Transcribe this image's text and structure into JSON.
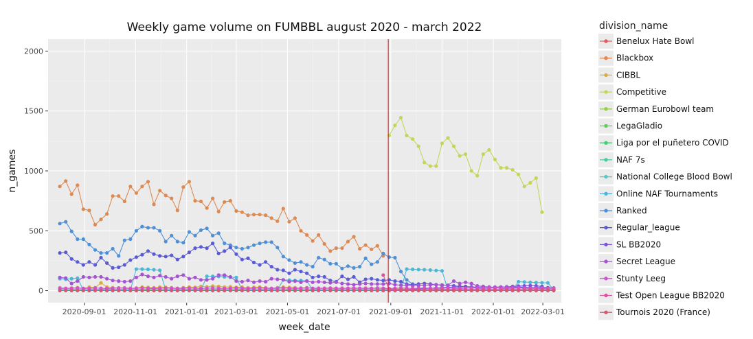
{
  "chart_data": {
    "type": "line",
    "title": "Weekly game volume on FUMBBL august 2020 - march 2022",
    "xlabel": "week_date",
    "ylabel": "n_games",
    "ylim": [
      -100,
      2100
    ],
    "yticks": [
      0,
      500,
      1000,
      1500,
      2000
    ],
    "x_ticks": [
      "2020-09-01",
      "2020-11-01",
      "2021-01-01",
      "2021-03-01",
      "2021-05-01",
      "2021-07-01",
      "2021-09-01",
      "2021-11-01",
      "2022-01-01",
      "2022-03-01"
    ],
    "x_range": [
      "2020-07-20",
      "2022-03-23"
    ],
    "x_start": "2020-08-03",
    "vline": {
      "x": "2021-08-29",
      "color": "#e41a1c"
    },
    "legend": {
      "title": "division_name",
      "position": "right"
    },
    "grid": true,
    "background": "#ebebeb",
    "series": [
      {
        "name": "Benelux Hate Bowl",
        "color": "#e5595e",
        "values": [
          2,
          2,
          3,
          2,
          2,
          2,
          2,
          2,
          3,
          2,
          2,
          2,
          2,
          2,
          2,
          2,
          2,
          2,
          2,
          2,
          2,
          2,
          2,
          2,
          2,
          2,
          2,
          2,
          2,
          2,
          2,
          2,
          2,
          2,
          2,
          2,
          2,
          2,
          2,
          2,
          2,
          2,
          2,
          2,
          2,
          2,
          2,
          2,
          2,
          2,
          2,
          2,
          2,
          2,
          2,
          2,
          2,
          2,
          2,
          2,
          2,
          2,
          2,
          2,
          2,
          2,
          2,
          2,
          2,
          2,
          2,
          2,
          2,
          2,
          2,
          2,
          2,
          2,
          2,
          2,
          2,
          2,
          2,
          2,
          2
        ]
      },
      {
        "name": "Blackbox",
        "color": "#dc8a52",
        "values": [
          870,
          915,
          805,
          880,
          680,
          670,
          550,
          595,
          640,
          790,
          790,
          745,
          870,
          815,
          870,
          910,
          720,
          835,
          795,
          770,
          670,
          865,
          910,
          750,
          745,
          690,
          770,
          660,
          740,
          750,
          665,
          655,
          630,
          635,
          635,
          630,
          605,
          580,
          685,
          575,
          605,
          500,
          465,
          415,
          465,
          390,
          330,
          355,
          355,
          410,
          450,
          350,
          380,
          345,
          375,
          290
        ]
      },
      {
        "name": "CIBBL",
        "color": "#d9ad3c",
        "values": [
          25,
          20,
          22,
          25,
          20,
          30,
          25,
          65,
          30,
          25,
          22,
          25,
          20,
          22,
          30,
          28,
          25,
          30,
          28,
          25,
          20,
          25,
          30,
          28,
          35,
          32,
          38,
          35,
          30,
          32,
          28,
          30,
          25,
          28,
          30,
          25,
          20,
          25,
          30,
          28,
          25,
          22,
          25,
          20,
          22,
          20,
          18,
          20,
          22,
          20,
          18,
          20,
          22,
          20,
          18,
          20,
          15,
          12,
          15,
          12,
          10,
          12,
          10,
          12,
          10,
          12,
          10,
          12,
          10,
          8,
          10,
          8,
          10,
          8,
          10,
          8,
          10,
          8,
          10,
          8,
          10,
          8,
          10,
          8,
          10
        ]
      },
      {
        "name": "Competitive",
        "color": "#c6d45c",
        "offset": 56,
        "values": [
          1295,
          1380,
          1445,
          1295,
          1265,
          1205,
          1070,
          1040,
          1040,
          1230,
          1275,
          1205,
          1125,
          1140,
          1000,
          960,
          1140,
          1175,
          1095,
          1025,
          1025,
          1010,
          970,
          870,
          900,
          940,
          655
        ]
      },
      {
        "name": "German Eurobowl team",
        "color": "#9acd4f",
        "values": [
          5,
          5,
          5,
          5,
          5,
          5,
          5,
          5,
          5,
          5,
          5,
          5,
          5,
          5,
          5,
          5,
          5,
          5,
          5,
          5,
          5,
          5,
          5,
          5,
          5,
          5,
          5,
          5,
          5,
          5,
          5,
          5,
          5,
          5,
          5,
          5,
          5,
          5,
          5,
          5,
          5,
          5,
          5,
          5,
          5,
          5,
          5,
          5,
          5,
          5,
          5,
          5,
          5,
          5,
          5,
          5,
          5,
          5,
          5,
          5,
          5,
          5,
          5,
          5,
          5,
          5,
          5,
          5,
          5,
          5,
          5,
          5,
          5,
          5,
          5,
          5,
          30,
          5,
          5,
          5,
          5,
          5,
          5,
          5,
          5
        ]
      },
      {
        "name": "LegaGladio",
        "color": "#5fcd5a",
        "values": [
          3,
          3,
          3,
          3,
          3,
          3,
          3,
          3,
          3,
          3,
          3,
          3,
          3,
          3,
          3,
          3,
          3,
          3,
          3,
          3,
          3,
          3,
          3,
          3,
          3,
          3,
          3,
          3,
          3,
          3,
          3,
          3,
          3,
          3,
          3,
          3,
          3,
          3,
          3,
          3,
          3,
          3,
          3,
          3,
          3,
          3,
          3,
          3,
          3,
          3,
          3,
          3,
          3,
          3,
          3,
          3,
          3,
          3,
          3,
          3,
          3,
          3,
          3,
          3,
          3,
          3,
          3,
          3,
          3,
          3,
          3,
          3,
          3,
          3,
          3,
          3,
          3,
          3,
          3,
          3,
          3,
          3,
          3,
          3,
          3
        ]
      },
      {
        "name": "Liga por el puñetero COVID",
        "color": "#42cc7a",
        "values": [
          4,
          4,
          4,
          4,
          4,
          4,
          4,
          4,
          4,
          4,
          4,
          4,
          4,
          4,
          4,
          4,
          4,
          4,
          4,
          4,
          4,
          4,
          4,
          4,
          4,
          4,
          4,
          4,
          4,
          4,
          4,
          4,
          4,
          4,
          4,
          4,
          4,
          4,
          4,
          4,
          4,
          4,
          4,
          4,
          4,
          4,
          4,
          4,
          4,
          4,
          4,
          4,
          4,
          4,
          4,
          4
        ]
      },
      {
        "name": "NAF 7s",
        "color": "#44cca0",
        "values": [
          2,
          2,
          2,
          2,
          2,
          2,
          2,
          2,
          2,
          2,
          2,
          2,
          2,
          2,
          2,
          2,
          2,
          2,
          2,
          2,
          2,
          2,
          2,
          2,
          2,
          2,
          2,
          2,
          2,
          2,
          2,
          2,
          2,
          2,
          2,
          2,
          2,
          2,
          2,
          2,
          2,
          2,
          2,
          2,
          2,
          2,
          2,
          2,
          2,
          2,
          2,
          2,
          2,
          2,
          2,
          2,
          2,
          2,
          2,
          2,
          2,
          2,
          2,
          2,
          2,
          2,
          2,
          2,
          2,
          2,
          2,
          2,
          2,
          2,
          2,
          2,
          2,
          2,
          2,
          2,
          2,
          2,
          2,
          2,
          2
        ]
      },
      {
        "name": "National College Blood Bowl",
        "color": "#4ccbc7",
        "values": [
          10,
          8,
          10,
          12,
          8,
          10,
          12,
          10,
          15,
          10,
          12,
          10,
          8,
          12,
          10,
          12,
          15,
          12,
          10,
          8,
          10,
          12,
          10,
          12,
          10,
          8,
          10,
          12,
          10,
          8,
          10,
          12,
          10,
          8,
          10,
          12,
          10,
          8,
          10,
          12,
          10,
          8,
          10,
          12,
          10,
          8,
          10,
          12,
          10,
          8,
          10,
          12,
          10,
          8,
          10,
          12,
          10,
          8,
          10,
          8,
          10,
          8,
          10,
          8,
          10,
          8,
          10,
          8,
          10,
          8,
          10,
          8,
          10,
          8,
          10,
          8,
          10,
          8,
          10,
          8,
          10,
          8,
          10,
          8,
          10
        ]
      },
      {
        "name": "Online NAF Tournaments",
        "color": "#4cb6d4",
        "values": [
          100,
          95,
          100,
          105,
          5,
          5,
          5,
          5,
          5,
          5,
          5,
          5,
          5,
          180,
          180,
          178,
          175,
          170,
          5,
          5,
          5,
          5,
          5,
          5,
          5,
          120,
          120,
          118,
          115,
          112,
          110,
          5,
          5,
          5,
          5,
          5,
          5,
          5,
          90,
          88,
          85,
          85,
          82,
          5,
          5,
          5,
          5,
          5,
          5,
          5,
          5,
          5,
          5,
          5,
          5,
          5,
          5,
          5,
          5,
          180,
          178,
          176,
          175,
          172,
          168,
          165,
          5,
          5,
          5,
          5,
          5,
          5,
          5,
          5,
          5,
          5,
          5,
          5,
          75,
          72,
          70,
          68,
          66,
          65,
          5
        ]
      },
      {
        "name": "Ranked",
        "color": "#4e8fd6",
        "values": [
          560,
          575,
          495,
          430,
          430,
          385,
          340,
          315,
          315,
          350,
          290,
          420,
          430,
          500,
          535,
          525,
          525,
          500,
          410,
          460,
          410,
          400,
          490,
          460,
          505,
          520,
          460,
          480,
          395,
          380,
          360,
          350,
          360,
          380,
          395,
          405,
          405,
          360,
          285,
          255,
          230,
          240,
          215,
          200,
          275,
          260,
          225,
          225,
          185,
          205,
          190,
          200,
          270,
          220,
          240,
          310,
          280,
          275,
          160,
          90,
          55,
          50
        ]
      },
      {
        "name": "Regular_league",
        "color": "#5a5ad4",
        "values": [
          315,
          320,
          265,
          240,
          215,
          240,
          215,
          275,
          230,
          190,
          195,
          215,
          255,
          280,
          300,
          330,
          305,
          290,
          285,
          295,
          260,
          285,
          320,
          355,
          365,
          355,
          395,
          310,
          330,
          360,
          305,
          260,
          270,
          235,
          215,
          240,
          200,
          175,
          170,
          145,
          175,
          160,
          145,
          110,
          120,
          115,
          85,
          75,
          120,
          95,
          115,
          70,
          95,
          100,
          90,
          85,
          90,
          80,
          75,
          55,
          50,
          55,
          60,
          55,
          50,
          45,
          45,
          40,
          35,
          35,
          30,
          30,
          28,
          30,
          28,
          30,
          28,
          28,
          30,
          28,
          25,
          25,
          28,
          25,
          22
        ]
      },
      {
        "name": "SL BB2020",
        "color": "#7a52d4",
        "offset": 56,
        "values": [
          5,
          5,
          8,
          10,
          12,
          15,
          18,
          20,
          22,
          25,
          28,
          30,
          30,
          32,
          30,
          28,
          30,
          28,
          30,
          30,
          32,
          35,
          38,
          40,
          42,
          40,
          35
        ]
      },
      {
        "name": "Secret League",
        "color": "#a652d2",
        "values": [
          110,
          105,
          60,
          80,
          115,
          110,
          115,
          115,
          100,
          85,
          80,
          75,
          80,
          110,
          135,
          120,
          110,
          125,
          115,
          100,
          120,
          130,
          100,
          110,
          90,
          90,
          100,
          130,
          130,
          115,
          80,
          75,
          85,
          70,
          80,
          75,
          100,
          95,
          90,
          75,
          80,
          70,
          80,
          70,
          75,
          70,
          65,
          70,
          60,
          55,
          50,
          55,
          60,
          55,
          55,
          55,
          60,
          50,
          45,
          45,
          40,
          42,
          45,
          48,
          50,
          48,
          45,
          80,
          60,
          70,
          60,
          40,
          35,
          30,
          28,
          30,
          28,
          30,
          25,
          20,
          22,
          20,
          18,
          20,
          22
        ]
      },
      {
        "name": "Stunty Leeg",
        "color": "#d152cf",
        "values": [
          20,
          18,
          20,
          22,
          18,
          20,
          22,
          20,
          18,
          20,
          22,
          20,
          18,
          20,
          22,
          20,
          18,
          20,
          22,
          20,
          18,
          20,
          22,
          20,
          18,
          20,
          22,
          20,
          18,
          20,
          22,
          20,
          18,
          20,
          22,
          20,
          18,
          20,
          22,
          20,
          18,
          20,
          22,
          20,
          18,
          20,
          22,
          20,
          18,
          20,
          22,
          20,
          18,
          20,
          22,
          20,
          18,
          20,
          22,
          20,
          18,
          20,
          22,
          20,
          18,
          20,
          22,
          20,
          18,
          20,
          22,
          20,
          18,
          20,
          22,
          20,
          18,
          20,
          22,
          20,
          18,
          20,
          22,
          20,
          18
        ]
      },
      {
        "name": "Test Open League BB2020",
        "color": "#d9539f",
        "values": [
          null,
          null,
          null,
          null,
          null,
          null,
          null,
          null,
          null,
          null,
          null,
          null,
          null,
          null,
          null,
          null,
          null,
          null,
          null,
          null,
          null,
          null,
          null,
          null,
          null,
          null,
          null,
          null,
          null,
          null,
          null,
          null,
          null,
          null,
          null,
          null,
          null,
          null,
          null,
          null,
          null,
          null,
          null,
          null,
          null,
          null,
          null,
          null,
          null,
          null,
          null,
          null,
          null,
          null,
          null,
          130,
          10,
          8,
          8,
          8,
          8,
          8,
          8,
          8,
          8,
          8,
          8,
          8,
          8,
          8,
          8,
          8,
          8,
          8,
          8,
          8,
          8,
          8,
          8,
          8,
          8,
          8,
          8,
          8,
          8
        ]
      },
      {
        "name": "Tournois 2020 (France)",
        "color": "#d95574",
        "values": [
          1,
          1,
          1,
          1,
          1,
          1,
          1,
          1,
          1,
          1,
          1,
          1,
          1,
          1,
          1,
          1,
          1,
          1,
          1,
          1,
          1,
          1,
          1,
          1,
          1,
          1,
          1,
          1,
          1,
          1,
          1,
          1,
          1,
          1,
          1,
          1,
          1,
          1,
          1,
          1,
          1,
          1,
          1,
          1,
          1,
          1,
          1,
          1,
          1,
          1,
          1,
          1,
          1,
          1,
          1,
          1,
          1,
          1,
          1,
          1,
          1,
          1,
          1,
          1,
          1,
          1,
          1,
          1,
          1,
          1,
          1,
          1,
          1,
          1,
          1,
          1,
          1,
          1,
          1,
          1,
          1,
          1,
          1,
          1,
          1
        ]
      }
    ]
  }
}
